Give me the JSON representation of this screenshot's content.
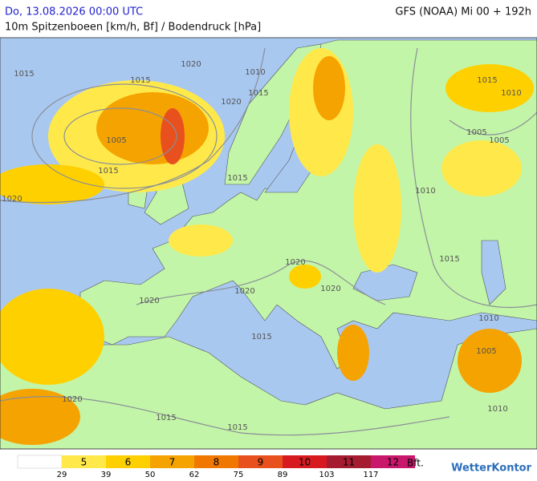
{
  "header": {
    "date": "Do, 13.08.2026 00:00 UTC",
    "model": "GFS (NOAA) Mi 00 + 192h",
    "subtitle": "10m Spitzenboeen [km/h, Bf] / Bodendruck [hPa]"
  },
  "isobar_labels": [
    "1015",
    "1020",
    "1010",
    "1015",
    "1020",
    "1015",
    "1005",
    "1015",
    "1020",
    "1015",
    "1010",
    "1005",
    "1005",
    "1010",
    "1015",
    "1015",
    "1020",
    "1020",
    "1020",
    "1020",
    "1015",
    "1010",
    "1005",
    "1020",
    "1015",
    "1015",
    "1010"
  ],
  "legend": {
    "bft": [
      "5",
      "6",
      "7",
      "8",
      "9",
      "10",
      "11",
      "12"
    ],
    "kmh": [
      "29",
      "39",
      "50",
      "62",
      "75",
      "89",
      "103",
      "117"
    ],
    "unit": "Bft."
  },
  "logo": "WetterKontor"
}
